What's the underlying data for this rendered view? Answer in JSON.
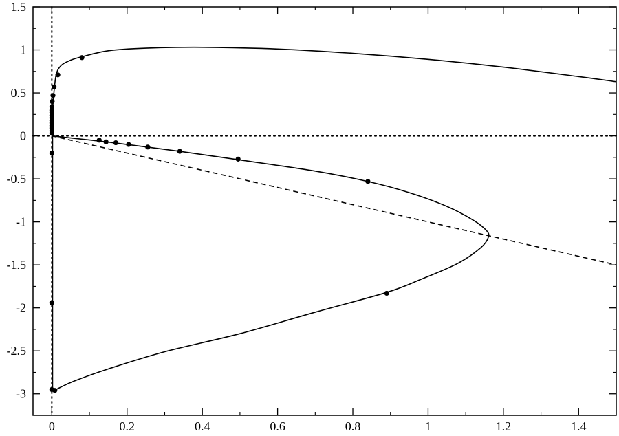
{
  "chart_data": {
    "type": "line",
    "title": "",
    "xlabel": "",
    "ylabel": "",
    "xlim": [
      -0.05,
      1.5
    ],
    "ylim": [
      -3.25,
      1.5
    ],
    "grid": false,
    "legend": "none",
    "xticks": {
      "values": [
        0,
        0.2,
        0.4,
        0.6,
        0.8,
        1,
        1.2,
        1.4
      ],
      "labels": [
        "0",
        "0.2",
        "0.4",
        "0.6",
        "0.8",
        "1",
        "1.2",
        "1.4"
      ]
    },
    "yticks": {
      "values": [
        1.5,
        1,
        0.5,
        0,
        -0.5,
        -1,
        -1.5,
        -2,
        -2.5,
        -3
      ],
      "labels": [
        "1.5",
        "1",
        "0.5",
        "0",
        "-0.5",
        "-1",
        "-1.5",
        "-2",
        "-2.5",
        "-3"
      ]
    },
    "reference_lines": [
      {
        "orientation": "horizontal",
        "value": 0,
        "style": "dotted"
      },
      {
        "orientation": "vertical",
        "value": 0,
        "style": "dotted"
      }
    ],
    "series": [
      {
        "style": "solid",
        "x": [
          0.0,
          0.002,
          0.006,
          0.012,
          0.025,
          0.05,
          0.08,
          0.15,
          0.25,
          0.4,
          0.6,
          0.8,
          1.0,
          1.2,
          1.4,
          1.5
        ],
        "y": [
          0.0,
          0.3,
          0.52,
          0.72,
          0.82,
          0.88,
          0.92,
          0.99,
          1.02,
          1.03,
          1.01,
          0.96,
          0.89,
          0.8,
          0.69,
          0.63
        ]
      },
      {
        "style": "solid",
        "x": [
          0.0,
          0.125,
          0.2,
          0.34,
          0.5,
          0.7,
          0.84,
          0.95,
          1.05,
          1.12,
          1.155,
          1.16,
          1.14,
          1.08,
          0.98,
          0.89,
          0.7,
          0.5,
          0.3,
          0.15,
          0.06,
          0.02,
          0.008
        ],
        "y": [
          0.0,
          -0.06,
          -0.1,
          -0.18,
          -0.28,
          -0.41,
          -0.53,
          -0.66,
          -0.82,
          -0.98,
          -1.1,
          -1.18,
          -1.3,
          -1.48,
          -1.67,
          -1.82,
          -2.05,
          -2.3,
          -2.51,
          -2.71,
          -2.85,
          -2.93,
          -2.96
        ]
      },
      {
        "style": "dashed",
        "x": [
          0,
          1.5
        ],
        "y": [
          0,
          -1.5
        ]
      },
      {
        "style": "solid",
        "x": [
          0.002,
          0.002
        ],
        "y": [
          0.0,
          -2.96
        ]
      }
    ],
    "markers": {
      "x": [
        0.08,
        0.016,
        0.006,
        0.003,
        0.001,
        0.0,
        0.0,
        0.0,
        0.0,
        0.0,
        0.0,
        0.0,
        0.0,
        0.0,
        0.0,
        0.0,
        0.126,
        0.144,
        0.17,
        0.204,
        0.255,
        0.34,
        0.495,
        0.84,
        0.89,
        0.0,
        0.0,
        0.0,
        0.008
      ],
      "y": [
        0.91,
        0.71,
        0.57,
        0.47,
        0.4,
        0.34,
        0.3,
        0.27,
        0.24,
        0.21,
        0.18,
        0.15,
        0.12,
        0.09,
        0.06,
        0.03,
        -0.05,
        -0.07,
        -0.08,
        -0.1,
        -0.13,
        -0.18,
        -0.27,
        -0.53,
        -1.83,
        -0.2,
        -1.94,
        -2.95,
        -2.96
      ]
    }
  }
}
